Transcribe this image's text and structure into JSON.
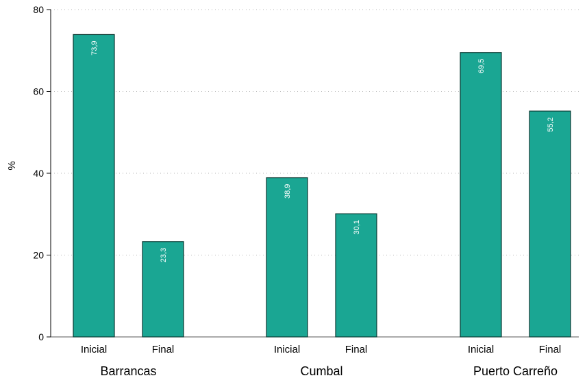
{
  "chart_data": {
    "type": "bar",
    "ylabel": "%",
    "ylim": [
      0,
      80
    ],
    "yticks": [
      0,
      20,
      40,
      60,
      80
    ],
    "grid": true,
    "bar_color": "#1aa693",
    "bar_edge_color": "#0b3a33",
    "data_label_color": "#ffffff",
    "groups": [
      {
        "label": "Barrancas",
        "bars": [
          {
            "category": "Inicial",
            "value": 73.9,
            "label": "73,9"
          },
          {
            "category": "Final",
            "value": 23.3,
            "label": "23,3"
          }
        ]
      },
      {
        "label": "Cumbal",
        "bars": [
          {
            "category": "Inicial",
            "value": 38.9,
            "label": "38,9"
          },
          {
            "category": "Final",
            "value": 30.1,
            "label": "30,1"
          }
        ]
      },
      {
        "label": "Puerto Carreño",
        "bars": [
          {
            "category": "Inicial",
            "value": 69.5,
            "label": "69,5"
          },
          {
            "category": "Final",
            "value": 55.2,
            "label": "55,2"
          }
        ]
      }
    ]
  }
}
